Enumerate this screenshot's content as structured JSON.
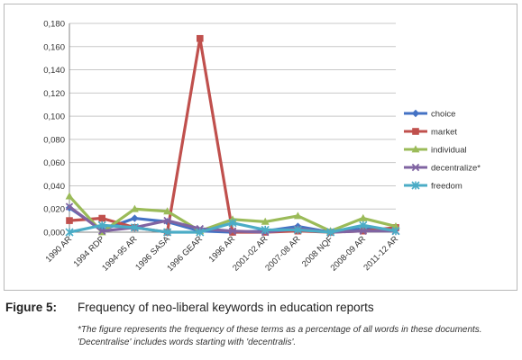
{
  "chart_data": {
    "type": "line",
    "categories": [
      "1990 AR",
      "1994 RDP",
      "1994-95 AR",
      "1996 SASA",
      "1996 GEAR",
      "1996 AR",
      "2001-02 AR",
      "2007-08 AR",
      "2008 NQF",
      "2008-09 AR",
      "2011-12 AR"
    ],
    "ylim": [
      0,
      0.18
    ],
    "yticks": [
      "0,000",
      "0,020",
      "0,040",
      "0,060",
      "0,080",
      "0,100",
      "0,120",
      "0,140",
      "0,160",
      "0,180"
    ],
    "grid": true,
    "legend_position": "right",
    "series": [
      {
        "name": "choice",
        "color": "#4472C4",
        "marker": "diamond",
        "values": [
          0.021,
          0.002,
          0.012,
          0.009,
          0.001,
          0.0,
          0.001,
          0.005,
          0.0,
          0.003,
          0.002
        ]
      },
      {
        "name": "market",
        "color": "#C0504D",
        "marker": "square",
        "values": [
          0.01,
          0.012,
          0.004,
          0.0,
          0.167,
          0.0,
          0.0,
          0.001,
          0.0,
          0.001,
          0.004
        ]
      },
      {
        "name": "individual",
        "color": "#9BBB59",
        "marker": "triangle",
        "values": [
          0.031,
          0.0,
          0.02,
          0.018,
          0.001,
          0.011,
          0.009,
          0.014,
          0.001,
          0.012,
          0.005
        ]
      },
      {
        "name": "decentralize*",
        "color": "#8064A2",
        "marker": "x",
        "values": [
          0.022,
          0.001,
          0.004,
          0.01,
          0.003,
          0.001,
          0.0,
          0.003,
          0.0,
          0.001,
          0.001
        ]
      },
      {
        "name": "freedom",
        "color": "#4BACC6",
        "marker": "star",
        "values": [
          0.0,
          0.006,
          0.004,
          0.0,
          0.0,
          0.008,
          0.002,
          0.002,
          0.0,
          0.006,
          0.001
        ]
      }
    ]
  },
  "caption": {
    "label": "Figure 5:",
    "title": "Frequency of neo-liberal keywords in education reports",
    "note": "*The figure represents the frequency of these terms as a percentage of all words in these documents. 'Decentralise' includes words starting with 'decentralis'."
  }
}
